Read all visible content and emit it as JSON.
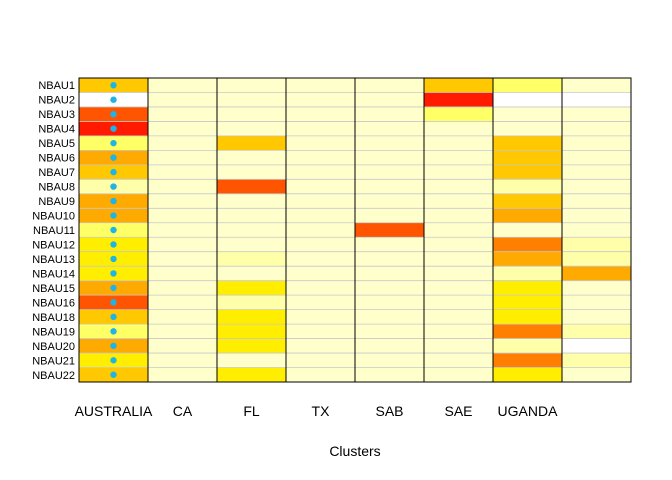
{
  "chart_data": {
    "type": "heatmap",
    "title": "",
    "xlabel": "Clusters",
    "ylabel": "",
    "rows": [
      "NBAU1",
      "NBAU2",
      "NBAU3",
      "NBAU4",
      "NBAU5",
      "NBAU6",
      "NBAU7",
      "NBAU8",
      "NBAU9",
      "NBAU10",
      "NBAU11",
      "NBAU12",
      "NBAU13",
      "NBAU14",
      "NBAU15",
      "NBAU16",
      "NBAU18",
      "NBAU19",
      "NBAU20",
      "NBAU21",
      "NBAU22"
    ],
    "column_labels": [
      "AUSTRALIA",
      "CA",
      "FL",
      "TX",
      "SAB",
      "SAE",
      "UGANDA",
      ""
    ],
    "n_columns": 8,
    "color_scale": [
      "#ffffff",
      "#ffffcc",
      "#ffffaa",
      "#ffff66",
      "#ffee00",
      "#ffc800",
      "#ffaa00",
      "#ff8000",
      "#ff5500",
      "#ff1a00"
    ],
    "values": [
      [
        0.6,
        0.1,
        0.1,
        0.1,
        0.1,
        0.6,
        0.3,
        0.1
      ],
      [
        0.0,
        0.1,
        0.1,
        0.1,
        0.1,
        1.0,
        0.0,
        0.0
      ],
      [
        0.85,
        0.1,
        0.1,
        0.1,
        0.1,
        0.3,
        0.1,
        0.1
      ],
      [
        1.0,
        0.1,
        0.1,
        0.1,
        0.1,
        0.1,
        0.1,
        0.1
      ],
      [
        0.35,
        0.1,
        0.55,
        0.1,
        0.1,
        0.1,
        0.55,
        0.1
      ],
      [
        0.7,
        0.1,
        0.1,
        0.1,
        0.1,
        0.1,
        0.5,
        0.15
      ],
      [
        0.6,
        0.1,
        0.1,
        0.1,
        0.1,
        0.1,
        0.6,
        0.1
      ],
      [
        0.2,
        0.1,
        0.9,
        0.1,
        0.1,
        0.1,
        0.2,
        0.1
      ],
      [
        0.65,
        0.1,
        0.15,
        0.1,
        0.1,
        0.1,
        0.6,
        0.1
      ],
      [
        0.65,
        0.1,
        0.15,
        0.1,
        0.1,
        0.1,
        0.65,
        0.1
      ],
      [
        0.3,
        0.1,
        0.1,
        0.1,
        0.9,
        0.1,
        0.1,
        0.1
      ],
      [
        0.45,
        0.1,
        0.1,
        0.1,
        0.1,
        0.1,
        0.75,
        0.2
      ],
      [
        0.4,
        0.1,
        0.2,
        0.1,
        0.1,
        0.1,
        0.7,
        0.2
      ],
      [
        0.4,
        0.15,
        0.15,
        0.15,
        0.1,
        0.15,
        0.2,
        0.65
      ],
      [
        0.7,
        0.1,
        0.45,
        0.1,
        0.1,
        0.1,
        0.45,
        0.1
      ],
      [
        0.85,
        0.1,
        0.2,
        0.1,
        0.1,
        0.1,
        0.45,
        0.1
      ],
      [
        0.6,
        0.1,
        0.45,
        0.1,
        0.1,
        0.1,
        0.45,
        0.15
      ],
      [
        0.3,
        0.1,
        0.45,
        0.1,
        0.1,
        0.1,
        0.75,
        0.2
      ],
      [
        0.7,
        0.1,
        0.45,
        0.1,
        0.1,
        0.1,
        0.25,
        0.0
      ],
      [
        0.4,
        0.1,
        0.1,
        0.1,
        0.1,
        0.1,
        0.75,
        0.2
      ],
      [
        0.6,
        0.15,
        0.4,
        0.1,
        0.1,
        0.1,
        0.4,
        0.15
      ]
    ],
    "marker_column": "AUSTRALIA",
    "marker_color": "#1fb4e6",
    "grid": true,
    "legend": "none"
  }
}
